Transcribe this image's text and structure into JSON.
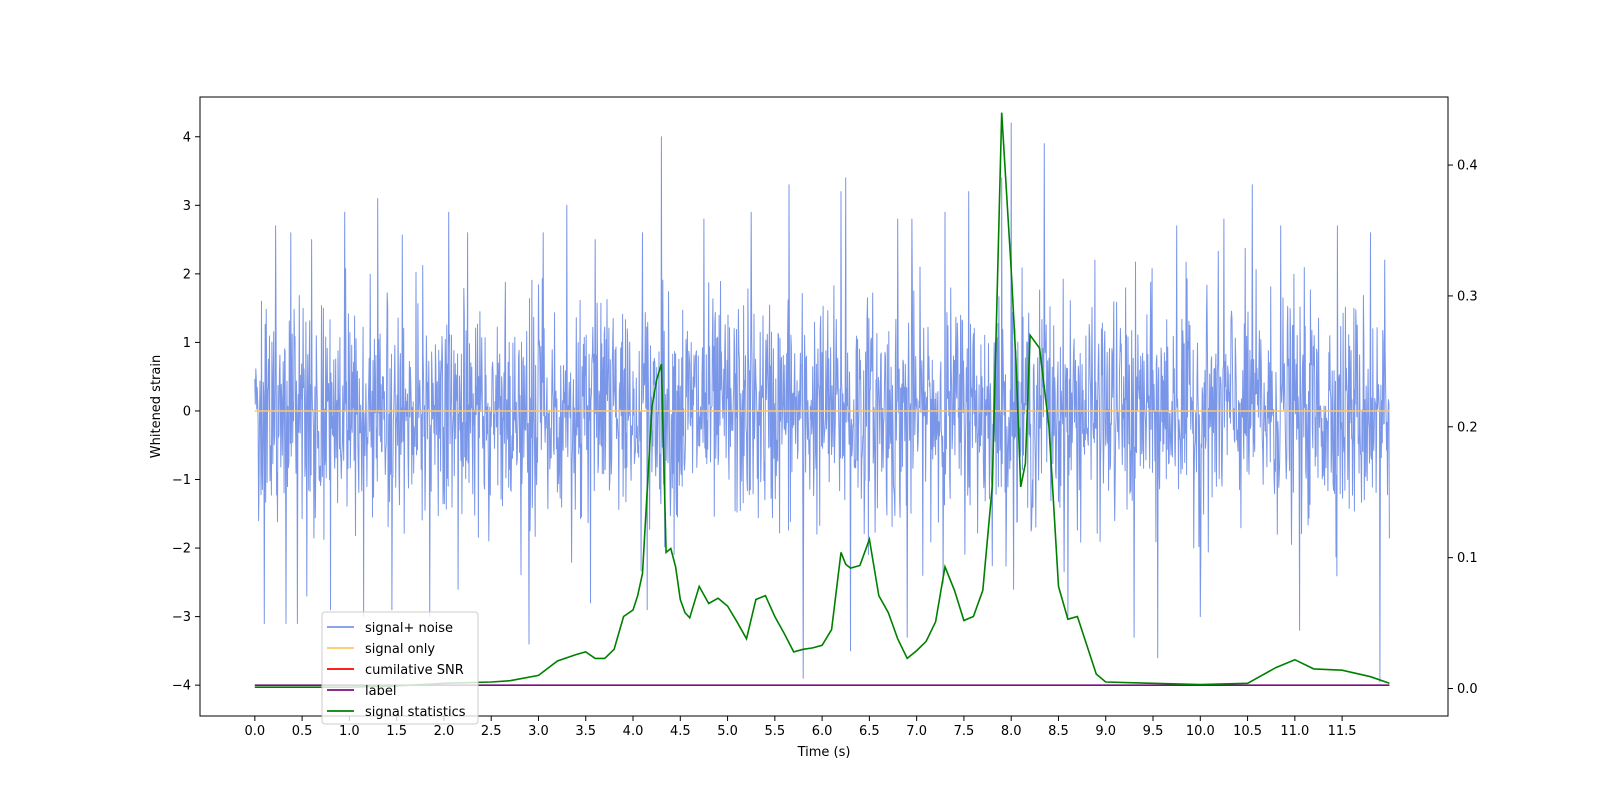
{
  "chart_data": {
    "type": "line",
    "xlabel": "Time (s)",
    "ylabel": "Whitened strain",
    "y2label": "",
    "xlim": [
      -0.58,
      12.62
    ],
    "ylim": [
      -4.45,
      4.58
    ],
    "y2lim": [
      -0.021,
      0.452
    ],
    "x_ticks": [
      "0.0",
      "0.5",
      "1.0",
      "1.5",
      "2.0",
      "2.5",
      "3.0",
      "3.5",
      "4.0",
      "4.5",
      "5.0",
      "5.5",
      "6.0",
      "6.5",
      "7.0",
      "7.5",
      "8.0",
      "8.5",
      "9.0",
      "9.5",
      "10.0",
      "10.5",
      "11.0",
      "11.5"
    ],
    "y_ticks": [
      "4",
      "3",
      "2",
      "1",
      "0",
      "−1",
      "−2",
      "−3",
      "−4"
    ],
    "y2_ticks": [
      "0.4",
      "0.3",
      "0.2",
      "0.1",
      "0.0"
    ],
    "legend_position": "lower-left",
    "grid": false,
    "series": [
      {
        "name": "signal+ noise",
        "color": "#7a96e8",
        "axis": "left",
        "x_range": [
          0,
          12
        ],
        "band": [
          -1.8,
          1.8
        ],
        "peaks": [
          [
            0.04,
            -1.6
          ],
          [
            0.07,
            1.6
          ],
          [
            0.22,
            2.7
          ],
          [
            0.38,
            2.6
          ],
          [
            0.6,
            2.5
          ],
          [
            0.95,
            2.9
          ],
          [
            1.3,
            3.1
          ],
          [
            1.45,
            2.6
          ],
          [
            2.05,
            2.9
          ],
          [
            2.25,
            2.6
          ],
          [
            2.9,
            3.8
          ],
          [
            3.05,
            2.6
          ],
          [
            3.3,
            3.0
          ],
          [
            3.6,
            2.5
          ],
          [
            4.1,
            2.6
          ],
          [
            4.3,
            4.0
          ],
          [
            4.75,
            2.8
          ],
          [
            5.25,
            2.9
          ],
          [
            5.65,
            3.3
          ],
          [
            5.8,
            3.8
          ],
          [
            6.2,
            3.2
          ],
          [
            6.25,
            3.4
          ],
          [
            6.8,
            2.8
          ],
          [
            6.95,
            2.8
          ],
          [
            7.3,
            2.9
          ],
          [
            7.55,
            3.2
          ],
          [
            7.9,
            3.4
          ],
          [
            8.0,
            4.2
          ],
          [
            8.35,
            3.9
          ],
          [
            8.6,
            2.8
          ],
          [
            9.3,
            2.7
          ],
          [
            9.75,
            2.7
          ],
          [
            10.25,
            2.8
          ],
          [
            10.55,
            3.3
          ],
          [
            10.85,
            2.7
          ],
          [
            11.05,
            2.6
          ],
          [
            11.45,
            2.7
          ],
          [
            11.8,
            2.6
          ],
          [
            11.95,
            2.2
          ],
          [
            0.1,
            -3.1
          ],
          [
            0.33,
            -3.1
          ],
          [
            0.45,
            -3.1
          ],
          [
            0.55,
            -2.7
          ],
          [
            0.8,
            -2.9
          ],
          [
            1.15,
            -3.0
          ],
          [
            1.45,
            -2.9
          ],
          [
            1.85,
            -3.0
          ],
          [
            2.15,
            -2.6
          ],
          [
            2.9,
            -3.4
          ],
          [
            3.55,
            -2.8
          ],
          [
            4.15,
            -2.9
          ],
          [
            5.8,
            -3.9
          ],
          [
            6.3,
            -3.5
          ],
          [
            6.9,
            -3.3
          ],
          [
            8.6,
            -3.0
          ],
          [
            9.3,
            -3.3
          ],
          [
            9.55,
            -3.6
          ],
          [
            10.0,
            -3.0
          ],
          [
            11.05,
            -3.2
          ],
          [
            11.9,
            -3.95
          ]
        ],
        "values": []
      },
      {
        "name": "signal only",
        "color": "#ffc766",
        "axis": "left",
        "x": [
          0,
          12
        ],
        "values": [
          0,
          0
        ]
      },
      {
        "name": "cumilative SNR",
        "color": "#ff0000",
        "axis": "left",
        "x": [],
        "values": []
      },
      {
        "name": "label",
        "color": "#7b0f7b",
        "axis": "left",
        "x": [
          0,
          12
        ],
        "values": [
          -4.0,
          -4.0
        ]
      },
      {
        "name": "signal statistics",
        "color": "#008000",
        "axis": "right",
        "x": [
          0,
          0.5,
          1.0,
          1.5,
          2.0,
          2.5,
          2.7,
          3.0,
          3.2,
          3.4,
          3.5,
          3.6,
          3.7,
          3.8,
          3.9,
          4.0,
          4.05,
          4.1,
          4.2,
          4.25,
          4.3,
          4.35,
          4.4,
          4.45,
          4.5,
          4.55,
          4.6,
          4.7,
          4.8,
          4.9,
          5.0,
          5.1,
          5.2,
          5.3,
          5.4,
          5.5,
          5.6,
          5.7,
          5.8,
          5.9,
          6.0,
          6.1,
          6.2,
          6.25,
          6.3,
          6.4,
          6.5,
          6.6,
          6.7,
          6.8,
          6.9,
          7.0,
          7.1,
          7.2,
          7.3,
          7.4,
          7.5,
          7.6,
          7.7,
          7.8,
          7.9,
          8.0,
          8.05,
          8.1,
          8.15,
          8.2,
          8.3,
          8.4,
          8.5,
          8.6,
          8.7,
          8.9,
          9.0,
          9.5,
          10.0,
          10.5,
          10.8,
          11.0,
          11.2,
          11.5,
          11.8,
          12.0
        ],
        "values": [
          0.001,
          0.001,
          0.001,
          0.002,
          0.004,
          0.005,
          0.006,
          0.01,
          0.021,
          0.026,
          0.028,
          0.023,
          0.023,
          0.03,
          0.055,
          0.06,
          0.071,
          0.088,
          0.215,
          0.236,
          0.248,
          0.104,
          0.107,
          0.093,
          0.068,
          0.058,
          0.054,
          0.078,
          0.065,
          0.069,
          0.063,
          0.051,
          0.038,
          0.068,
          0.071,
          0.055,
          0.042,
          0.028,
          0.03,
          0.031,
          0.033,
          0.045,
          0.104,
          0.095,
          0.092,
          0.094,
          0.114,
          0.071,
          0.058,
          0.038,
          0.023,
          0.029,
          0.036,
          0.051,
          0.093,
          0.075,
          0.052,
          0.055,
          0.075,
          0.155,
          0.44,
          0.32,
          0.251,
          0.154,
          0.172,
          0.27,
          0.26,
          0.2,
          0.078,
          0.053,
          0.055,
          0.011,
          0.005,
          0.004,
          0.003,
          0.004,
          0.016,
          0.022,
          0.015,
          0.014,
          0.009,
          0.004
        ]
      }
    ]
  }
}
